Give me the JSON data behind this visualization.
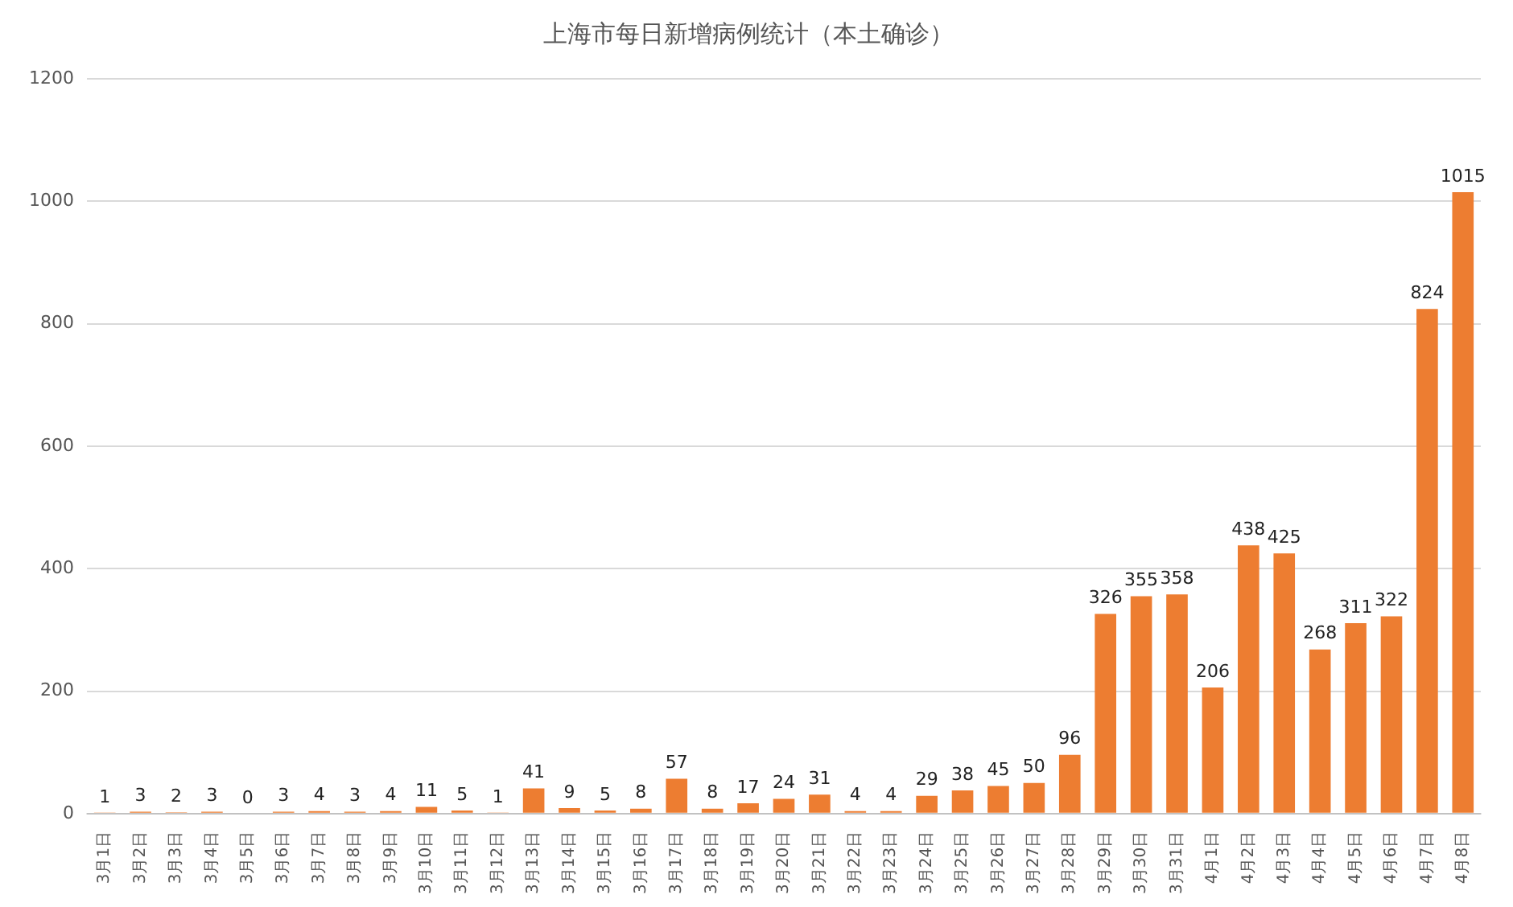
{
  "chart_data": {
    "type": "bar",
    "title": "上海市每日新增病例统计（本土确诊）",
    "categories": [
      "3月1日",
      "3月2日",
      "3月3日",
      "3月4日",
      "3月5日",
      "3月6日",
      "3月7日",
      "3月8日",
      "3月9日",
      "3月10日",
      "3月11日",
      "3月12日",
      "3月13日",
      "3月14日",
      "3月15日",
      "3月16日",
      "3月17日",
      "3月18日",
      "3月19日",
      "3月20日",
      "3月21日",
      "3月22日",
      "3月23日",
      "3月24日",
      "3月25日",
      "3月26日",
      "3月27日",
      "3月28日",
      "3月29日",
      "3月30日",
      "3月31日",
      "4月1日",
      "4月2日",
      "4月3日",
      "4月4日",
      "4月5日",
      "4月6日",
      "4月7日",
      "4月8日"
    ],
    "values": [
      1,
      3,
      2,
      3,
      0,
      3,
      4,
      3,
      4,
      11,
      5,
      1,
      41,
      9,
      5,
      8,
      57,
      8,
      17,
      24,
      31,
      4,
      4,
      29,
      38,
      45,
      50,
      96,
      326,
      355,
      358,
      206,
      438,
      425,
      268,
      311,
      322,
      824,
      1015
    ],
    "color": "#ed7d31",
    "ylim": [
      0,
      1200
    ],
    "yticks": [
      0,
      200,
      400,
      600,
      800,
      1000,
      1200
    ],
    "grid": "y",
    "data_labels": true
  }
}
